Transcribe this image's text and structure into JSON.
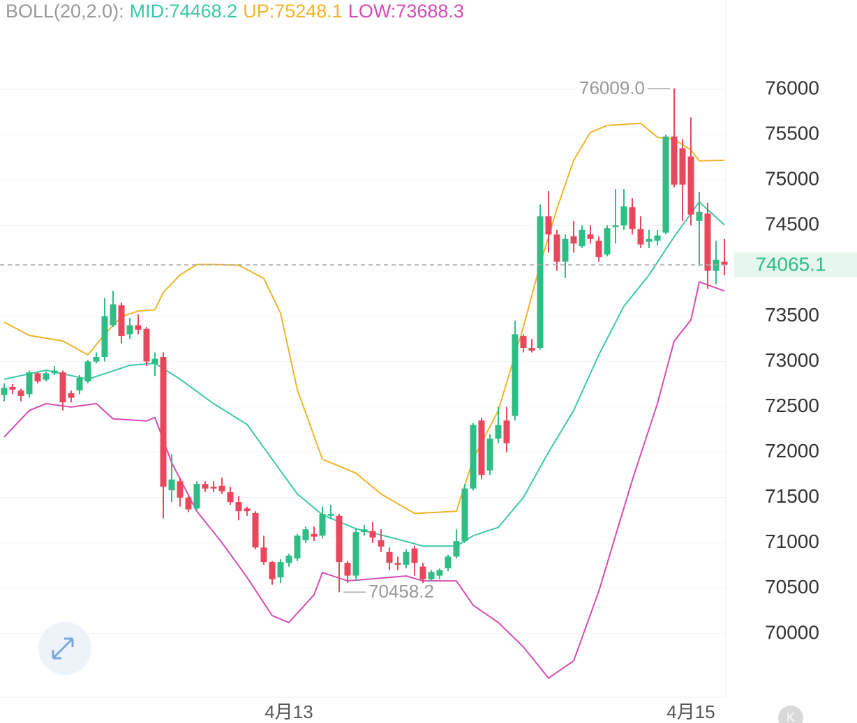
{
  "chart_data": {
    "type": "candlestick",
    "indicator_label": "BOLL(20,2.0):",
    "colors": {
      "up": "#2ebd85",
      "down": "#e9475c"
    },
    "candles": {
      "open": [
        72630,
        72720,
        72680,
        72640,
        72870,
        72800,
        72870,
        72880,
        72650,
        72680,
        72780,
        73000,
        73050,
        73400,
        73620,
        73300,
        73400,
        73360,
        72970,
        73050,
        71580,
        71680,
        71500,
        71380,
        71650,
        71620,
        71630,
        71560,
        71450,
        71380,
        71330,
        70950,
        70790,
        70620,
        70780,
        70830,
        71030,
        71100,
        71080,
        71300,
        71300,
        70780,
        70640,
        71120,
        71130,
        71030,
        70900,
        70780,
        70760,
        70940,
        70740,
        70600,
        70640,
        70720,
        70850,
        71020,
        71600,
        72350,
        71800,
        72150,
        72350,
        72400,
        73280,
        73150,
        73150,
        74600,
        74400,
        74100,
        74380,
        74270,
        74400,
        74330,
        74180,
        74480,
        74500,
        74700,
        74460,
        74320,
        74330,
        74420,
        75480,
        75350,
        75260,
        74550,
        74630,
        74000,
        74100
      ],
      "high": [
        72760,
        72750,
        72700,
        72900,
        72880,
        72890,
        72950,
        72900,
        72680,
        72850,
        73020,
        73100,
        73700,
        73780,
        73650,
        73480,
        73520,
        73380,
        73100,
        73100,
        71980,
        71720,
        71520,
        71680,
        71680,
        71680,
        71720,
        71620,
        71520,
        71400,
        71350,
        71080,
        70800,
        70820,
        70880,
        71100,
        71180,
        71180,
        71400,
        71420,
        71320,
        70800,
        71160,
        71200,
        71230,
        71150,
        70950,
        70850,
        70930,
        70970,
        70780,
        70700,
        70720,
        70870,
        71150,
        71650,
        72320,
        72380,
        72200,
        72500,
        72500,
        73450,
        73300,
        73250,
        74730,
        74880,
        74450,
        74400,
        74550,
        74500,
        74500,
        74380,
        74500,
        74900,
        74900,
        74800,
        74600,
        74450,
        74450,
        75500,
        76009,
        75450,
        75690,
        74870,
        74750,
        74330,
        74350
      ],
      "low": [
        72560,
        72640,
        72560,
        72600,
        72760,
        72780,
        72850,
        72460,
        72550,
        72640,
        72760,
        72980,
        73000,
        73380,
        73200,
        73250,
        73300,
        72950,
        72840,
        71270,
        71450,
        71400,
        71340,
        71360,
        71560,
        71560,
        71540,
        71420,
        71250,
        71300,
        70930,
        70760,
        70540,
        70560,
        70740,
        70800,
        71000,
        71020,
        71050,
        71260,
        70458.2,
        70560,
        70580,
        71080,
        71000,
        70900,
        70700,
        70700,
        70720,
        70640,
        70560,
        70580,
        70600,
        70690,
        70830,
        71000,
        71580,
        71700,
        71750,
        72100,
        72000,
        72350,
        73100,
        73100,
        73130,
        74200,
        74000,
        73920,
        74200,
        74250,
        74300,
        74100,
        74160,
        74300,
        74450,
        74400,
        74250,
        74250,
        74280,
        74400,
        74920,
        74550,
        74500,
        74050,
        73800,
        73850,
        73950
      ],
      "close": [
        72710,
        72690,
        72620,
        72880,
        72780,
        72870,
        72900,
        72550,
        72600,
        72820,
        73000,
        73050,
        73500,
        73630,
        73280,
        73400,
        73350,
        73000,
        73030,
        71620,
        71700,
        71500,
        71370,
        71650,
        71600,
        71600,
        71570,
        71450,
        71350,
        71350,
        70950,
        70790,
        70600,
        70790,
        70860,
        71080,
        71150,
        71070,
        71320,
        71320,
        70790,
        70640,
        71120,
        71150,
        71060,
        70960,
        70780,
        70760,
        70900,
        70780,
        70600,
        70680,
        70700,
        70850,
        71020,
        71600,
        72300,
        71750,
        72150,
        72300,
        72100,
        73300,
        73150,
        73120,
        74600,
        74400,
        74100,
        74350,
        74300,
        74450,
        74350,
        74150,
        74470,
        74500,
        74710,
        74460,
        74290,
        74350,
        74390,
        75480,
        74950,
        74950,
        74620,
        74650,
        74000,
        74120,
        74065.1
      ]
    },
    "series": [
      {
        "name": "MID:74468.2",
        "color": "#3cc8a6",
        "x": [
          0,
          5,
          10,
          15,
          18,
          21,
          25,
          29,
          32,
          35,
          38,
          42,
          47,
          50,
          54,
          56,
          59,
          62,
          65,
          68,
          71,
          74,
          77,
          80,
          83,
          86
        ],
        "values": [
          72805,
          72904,
          72805,
          72958,
          72981,
          72805,
          72536,
          72306,
          71923,
          71540,
          71310,
          71157,
          71042,
          70966,
          70966,
          71080,
          71172,
          71502,
          72000,
          72460,
          73073,
          73609,
          73954,
          74375,
          74759,
          74506
        ]
      },
      {
        "name": "UP:75248.1",
        "color": "#f0b429",
        "x": [
          0,
          3,
          7,
          10,
          12,
          14,
          16,
          18,
          19,
          21,
          23,
          25,
          28,
          31,
          33,
          35,
          38,
          40,
          42,
          45,
          49,
          54,
          56,
          59,
          62,
          64,
          66,
          68,
          70,
          72,
          76,
          78,
          80,
          82,
          83,
          86
        ],
        "values": [
          73433,
          73287,
          73226,
          73073,
          73300,
          73494,
          73556,
          73570,
          73762,
          73954,
          74069,
          74069,
          74061,
          73916,
          73533,
          72690,
          71923,
          71847,
          71770,
          71540,
          71326,
          71349,
          71923,
          72460,
          73380,
          74069,
          74682,
          75218,
          75525,
          75602,
          75625,
          75471,
          75448,
          75333,
          75211,
          75218
        ]
      },
      {
        "name": "LOW:73688.3",
        "color": "#d54bb6",
        "x": [
          0,
          3,
          5,
          8,
          11,
          13,
          17,
          18,
          20,
          23,
          26,
          29,
          32,
          34,
          37,
          38,
          41,
          48,
          50,
          54,
          56,
          59,
          62,
          65,
          68,
          71,
          75,
          78,
          80,
          82,
          83,
          86
        ],
        "values": [
          72169,
          72460,
          72536,
          72498,
          72536,
          72368,
          72345,
          72383,
          71885,
          71349,
          71004,
          70621,
          70199,
          70123,
          70429,
          70674,
          70582,
          70636,
          70582,
          70582,
          70314,
          70123,
          69854,
          69510,
          69701,
          70467,
          71693,
          72536,
          73226,
          73456,
          73877,
          73778
        ]
      }
    ],
    "ylim": [
      69300,
      76700
    ],
    "yticks": [
      70000,
      70500,
      71000,
      71500,
      72000,
      72500,
      73000,
      73500,
      74000,
      74500,
      75000,
      75500,
      76000
    ],
    "xticks": [
      {
        "value": 34,
        "label": "4月13"
      },
      {
        "value": 82,
        "label": "4月15"
      }
    ],
    "max_label": {
      "value": 76009,
      "label": "76009.0"
    },
    "min_label": 70458.2,
    "last_price": 74065.1,
    "grid": true
  }
}
